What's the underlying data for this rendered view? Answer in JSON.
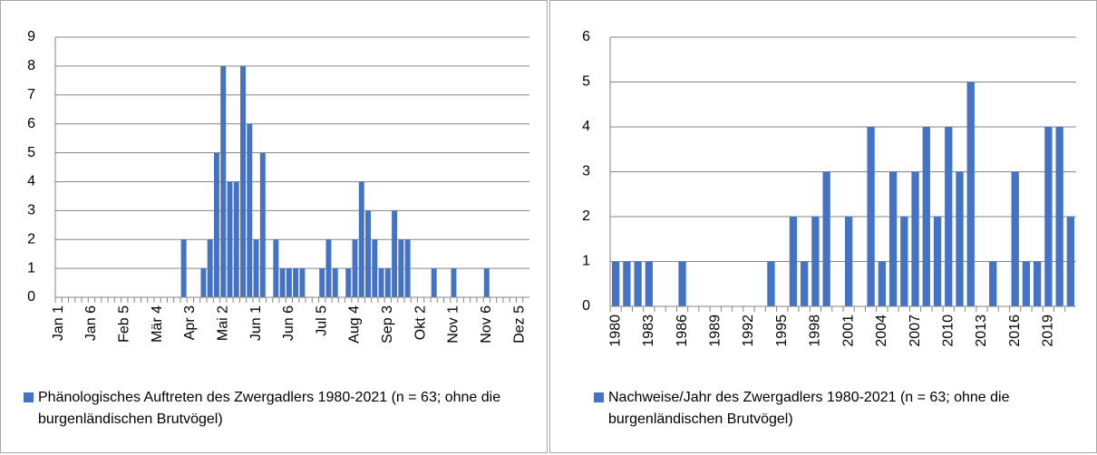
{
  "chart_data": [
    {
      "type": "bar",
      "categories": [
        "Jan 1",
        null,
        null,
        null,
        null,
        "Jan 6",
        null,
        null,
        null,
        null,
        "Feb 5",
        null,
        null,
        null,
        null,
        "Mär 4",
        null,
        null,
        null,
        null,
        "Apr 3",
        null,
        null,
        null,
        null,
        "Mai 2",
        null,
        null,
        null,
        null,
        "Jun 1",
        null,
        null,
        null,
        null,
        "Jun 6",
        null,
        null,
        null,
        null,
        "Jul 5",
        null,
        null,
        null,
        null,
        "Aug 4",
        null,
        null,
        null,
        null,
        "Sep 3",
        null,
        null,
        null,
        null,
        "Okt 2",
        null,
        null,
        null,
        null,
        "Nov 1",
        null,
        null,
        null,
        null,
        "Nov 6",
        null,
        null,
        null,
        null,
        "Dez 5",
        null
      ],
      "series": [
        {
          "name": "Phänologisches Auftreten des Zwergadlers 1980-2021 (n = 63; ohne die burgenländischen Brutvögel)",
          "color": "#4472c4",
          "values": [
            0,
            0,
            0,
            0,
            0,
            0,
            0,
            0,
            0,
            0,
            0,
            0,
            0,
            0,
            0,
            0,
            0,
            0,
            0,
            2,
            0,
            0,
            1,
            2,
            5,
            8,
            4,
            4,
            8,
            6,
            2,
            5,
            0,
            2,
            1,
            1,
            1,
            1,
            0,
            0,
            1,
            2,
            1,
            0,
            1,
            2,
            4,
            3,
            2,
            1,
            1,
            3,
            2,
            2,
            0,
            0,
            0,
            1,
            0,
            0,
            1,
            0,
            0,
            0,
            0,
            1,
            0,
            0,
            0,
            0,
            0,
            0
          ]
        }
      ],
      "ylim": [
        0,
        9
      ],
      "yticks": [
        0,
        1,
        2,
        3,
        4,
        5,
        6,
        7,
        8,
        9
      ],
      "grid": true
    },
    {
      "type": "bar",
      "categories": [
        "1980",
        null,
        null,
        "1983",
        null,
        null,
        "1986",
        null,
        null,
        "1989",
        null,
        null,
        "1992",
        null,
        null,
        "1995",
        null,
        null,
        "1998",
        null,
        null,
        "2001",
        null,
        null,
        "2004",
        null,
        null,
        "2007",
        null,
        null,
        "2010",
        null,
        null,
        "2013",
        null,
        null,
        "2016",
        null,
        null,
        "2019",
        null,
        null
      ],
      "series": [
        {
          "name": "Nachweise/Jahr des Zwergadlers 1980-2021 (n = 63; ohne die burgenländischen Brutvögel)",
          "color": "#4472c4",
          "values": [
            1,
            1,
            1,
            1,
            0,
            0,
            1,
            0,
            0,
            0,
            0,
            0,
            0,
            0,
            1,
            0,
            2,
            1,
            2,
            3,
            0,
            2,
            0,
            4,
            1,
            3,
            2,
            3,
            4,
            2,
            4,
            3,
            5,
            0,
            1,
            0,
            3,
            1,
            1,
            4,
            4,
            2
          ]
        }
      ],
      "ylim": [
        0,
        6
      ],
      "yticks": [
        0,
        1,
        2,
        3,
        4,
        5,
        6
      ],
      "grid": true
    }
  ]
}
